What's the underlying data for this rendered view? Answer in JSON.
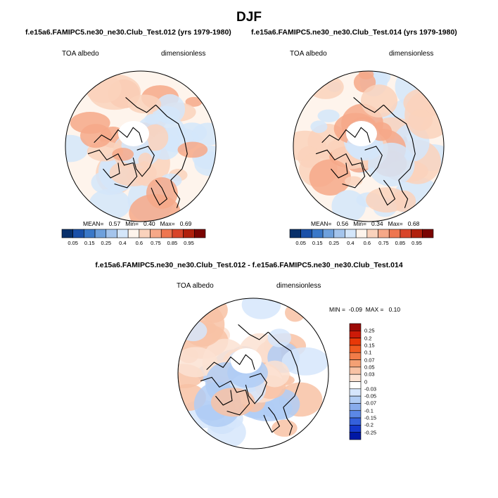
{
  "page": {
    "season": "DJF",
    "case1_title": "f.e15a6.FAMIPC5.ne30_ne30.Club_Test.012 (yrs 1979-1980)",
    "case2_title": "f.e15a6.FAMIPC5.ne30_ne30.Club_Test.014 (yrs 1979-1980)",
    "diff_title": "f.e15a6.FAMIPC5.ne30_ne30.Club_Test.012 - f.e15a6.FAMIPC5.ne30_ne30.Club_Test.014"
  },
  "chart_data": [
    {
      "type": "heatmap",
      "projection": "north polar stereographic",
      "variable_label": "TOA albedo",
      "units_label": "dimensionless",
      "stats": {
        "mean_label": "MEAN=",
        "mean": "0.57",
        "min_label": "Min=",
        "min": "0.40",
        "max_label": "Max=",
        "max": "0.69"
      },
      "colorbar": {
        "orientation": "horizontal",
        "tick_labels": [
          "0.05",
          "0.15",
          "0.25",
          "0.4",
          "0.6",
          "0.75",
          "0.85",
          "0.95"
        ],
        "colors": [
          "#08306b",
          "#1a50a8",
          "#3a78c8",
          "#6ea0dc",
          "#a4c4ec",
          "#d4e6fa",
          "#fef4ec",
          "#fad2bc",
          "#f6a888",
          "#ee7650",
          "#d8452a",
          "#b0200c",
          "#7a0402"
        ]
      }
    },
    {
      "type": "heatmap",
      "projection": "north polar stereographic",
      "variable_label": "TOA albedo",
      "units_label": "dimensionless",
      "stats": {
        "mean_label": "MEAN=",
        "mean": "0.56",
        "min_label": "Min=",
        "min": "0.34",
        "max_label": "Max=",
        "max": "0.68"
      },
      "colorbar": {
        "orientation": "horizontal",
        "tick_labels": [
          "0.05",
          "0.15",
          "0.25",
          "0.4",
          "0.6",
          "0.75",
          "0.85",
          "0.95"
        ],
        "colors": [
          "#08306b",
          "#1a50a8",
          "#3a78c8",
          "#6ea0dc",
          "#a4c4ec",
          "#d4e6fa",
          "#fef4ec",
          "#fad2bc",
          "#f6a888",
          "#ee7650",
          "#d8452a",
          "#b0200c",
          "#7a0402"
        ]
      }
    },
    {
      "type": "heatmap",
      "projection": "north polar stereographic",
      "variable_label": "TOA albedo",
      "units_label": "dimensionless",
      "stats": {
        "min_label": "MIN =",
        "min": "-0.09",
        "max_label": "MAX =",
        "max": "0.10"
      },
      "colorbar": {
        "orientation": "vertical",
        "tick_labels": [
          "0.25",
          "0.2",
          "0.15",
          "0.1",
          "0.07",
          "0.05",
          "0.03",
          "0",
          "-0.03",
          "-0.05",
          "-0.07",
          "-0.1",
          "-0.15",
          "-0.2",
          "-0.25"
        ],
        "colors": [
          "#9c0a06",
          "#cc1a08",
          "#e83808",
          "#f05a20",
          "#f27c48",
          "#f4a074",
          "#f8c2a4",
          "#fce2d2",
          "#ffffff",
          "#d6e6fc",
          "#b0ccf4",
          "#88acec",
          "#5c88e6",
          "#3460dc",
          "#1438cc",
          "#0018a4"
        ]
      }
    }
  ]
}
